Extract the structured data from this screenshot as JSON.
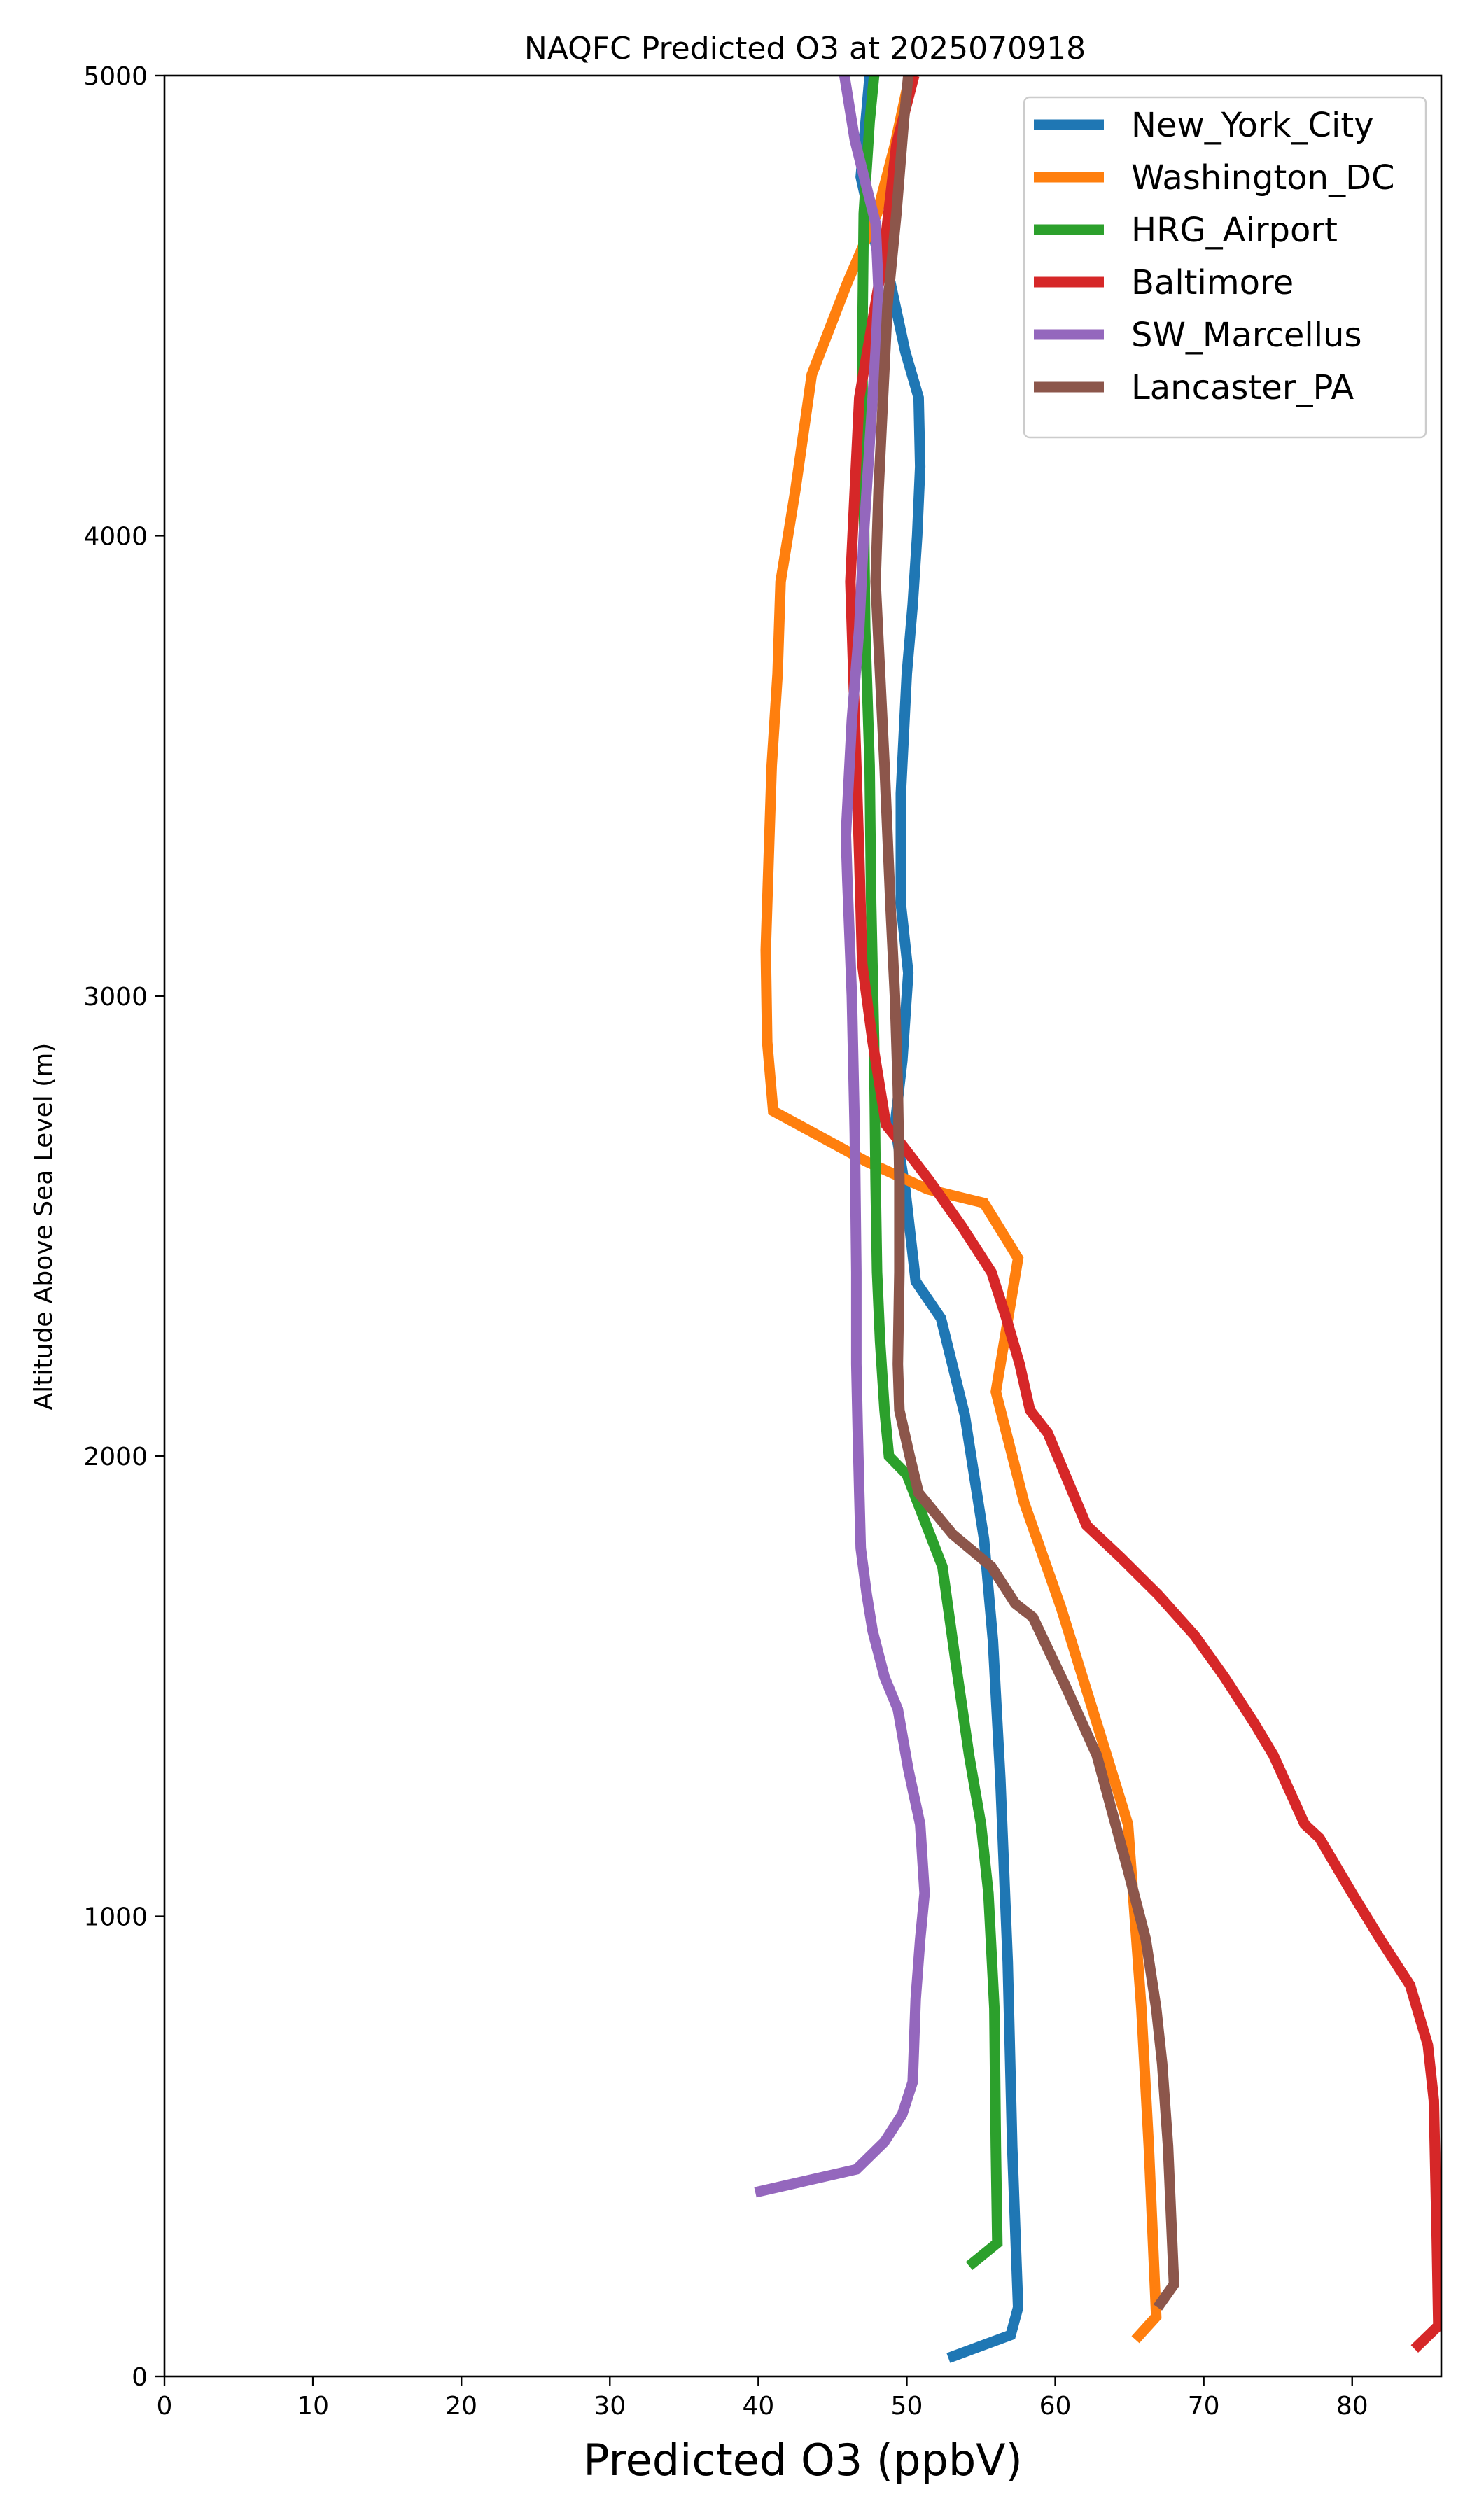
{
  "chart_data": {
    "type": "line",
    "title": "NAQFC Predicted O3 at 2025070918",
    "xlabel": "Predicted O3 (ppbV)",
    "ylabel": "Altitude Above Sea Level (m)",
    "xlim": [
      0,
      86
    ],
    "ylim": [
      0,
      5000
    ],
    "xticks": [
      0,
      10,
      20,
      30,
      40,
      50,
      60,
      70,
      80
    ],
    "yticks": [
      0,
      1000,
      2000,
      3000,
      4000,
      5000
    ],
    "grid": false,
    "legend_position": "top-right",
    "series": [
      {
        "name": "New_York_City",
        "color": "#1f77b4",
        "points": [
          [
            52.8,
            40
          ],
          [
            57.0,
            90
          ],
          [
            57.5,
            150
          ],
          [
            57.1,
            500
          ],
          [
            56.8,
            900
          ],
          [
            56.3,
            1300
          ],
          [
            55.8,
            1600
          ],
          [
            55.2,
            1820
          ],
          [
            53.9,
            2090
          ],
          [
            52.3,
            2300
          ],
          [
            50.6,
            2380
          ],
          [
            49.9,
            2580
          ],
          [
            49.2,
            2720
          ],
          [
            49.7,
            2860
          ],
          [
            50.1,
            3050
          ],
          [
            49.6,
            3200
          ],
          [
            49.6,
            3440
          ],
          [
            50.0,
            3700
          ],
          [
            50.4,
            3850
          ],
          [
            50.7,
            4000
          ],
          [
            50.9,
            4150
          ],
          [
            50.8,
            4300
          ],
          [
            49.9,
            4400
          ],
          [
            48.9,
            4550
          ],
          [
            48.0,
            4620
          ],
          [
            46.9,
            4780
          ],
          [
            47.5,
            5000
          ]
        ]
      },
      {
        "name": "Washington_DC",
        "color": "#ff7f0e",
        "points": [
          [
            65.4,
            80
          ],
          [
            66.8,
            130
          ],
          [
            66.3,
            500
          ],
          [
            65.8,
            800
          ],
          [
            64.9,
            1200
          ],
          [
            62.8,
            1420
          ],
          [
            60.4,
            1670
          ],
          [
            57.9,
            1900
          ],
          [
            56.0,
            2140
          ],
          [
            57.5,
            2430
          ],
          [
            55.2,
            2550
          ],
          [
            51.4,
            2580
          ],
          [
            47.3,
            2640
          ],
          [
            41.0,
            2750
          ],
          [
            40.6,
            2900
          ],
          [
            40.5,
            3100
          ],
          [
            40.7,
            3300
          ],
          [
            40.9,
            3500
          ],
          [
            41.3,
            3700
          ],
          [
            41.5,
            3900
          ],
          [
            42.5,
            4100
          ],
          [
            43.6,
            4350
          ],
          [
            46.0,
            4550
          ],
          [
            48.0,
            4700
          ],
          [
            49.2,
            4850
          ],
          [
            50.2,
            5000
          ]
        ]
      },
      {
        "name": "HRG_Airport",
        "color": "#2ca02c",
        "points": [
          [
            54.2,
            240
          ],
          [
            56.1,
            290
          ],
          [
            56.0,
            500
          ],
          [
            55.9,
            800
          ],
          [
            55.5,
            1050
          ],
          [
            55.0,
            1200
          ],
          [
            54.2,
            1350
          ],
          [
            53.3,
            1550
          ],
          [
            52.4,
            1760
          ],
          [
            50.0,
            1960
          ],
          [
            48.8,
            2000
          ],
          [
            48.5,
            2100
          ],
          [
            48.2,
            2250
          ],
          [
            48.0,
            2400
          ],
          [
            47.9,
            2600
          ],
          [
            47.8,
            2900
          ],
          [
            47.6,
            3200
          ],
          [
            47.5,
            3500
          ],
          [
            47.2,
            3800
          ],
          [
            47.1,
            4100
          ],
          [
            47.0,
            4400
          ],
          [
            47.1,
            4700
          ],
          [
            47.5,
            4900
          ],
          [
            47.8,
            5000
          ]
        ]
      },
      {
        "name": "Baltimore",
        "color": "#d62728",
        "points": [
          [
            84.2,
            60
          ],
          [
            85.8,
            110
          ],
          [
            85.7,
            300
          ],
          [
            85.5,
            600
          ],
          [
            85.1,
            720
          ],
          [
            83.9,
            850
          ],
          [
            81.9,
            950
          ],
          [
            80.0,
            1050
          ],
          [
            77.8,
            1170
          ],
          [
            76.8,
            1200
          ],
          [
            74.7,
            1350
          ],
          [
            73.4,
            1420
          ],
          [
            71.4,
            1520
          ],
          [
            69.4,
            1610
          ],
          [
            66.9,
            1700
          ],
          [
            64.4,
            1780
          ],
          [
            62.1,
            1850
          ],
          [
            60.8,
            1950
          ],
          [
            59.5,
            2050
          ],
          [
            58.3,
            2100
          ],
          [
            57.6,
            2200
          ],
          [
            56.7,
            2300
          ],
          [
            55.7,
            2400
          ],
          [
            53.7,
            2500
          ],
          [
            51.5,
            2600
          ],
          [
            49.6,
            2680
          ],
          [
            48.6,
            2720
          ],
          [
            47.7,
            2900
          ],
          [
            47.0,
            3070
          ],
          [
            46.8,
            3300
          ],
          [
            46.6,
            3500
          ],
          [
            46.4,
            3700
          ],
          [
            46.2,
            3900
          ],
          [
            46.5,
            4100
          ],
          [
            46.8,
            4300
          ],
          [
            47.6,
            4450
          ],
          [
            48.4,
            4600
          ],
          [
            49.3,
            4850
          ],
          [
            50.5,
            5000
          ]
        ]
      },
      {
        "name": "SW_Marcellus",
        "color": "#9467bd",
        "points": [
          [
            39.8,
            400
          ],
          [
            46.6,
            450
          ],
          [
            48.5,
            510
          ],
          [
            49.7,
            570
          ],
          [
            50.4,
            640
          ],
          [
            50.6,
            820
          ],
          [
            50.9,
            950
          ],
          [
            51.2,
            1050
          ],
          [
            50.9,
            1200
          ],
          [
            50.1,
            1320
          ],
          [
            49.4,
            1450
          ],
          [
            48.5,
            1520
          ],
          [
            47.7,
            1620
          ],
          [
            47.3,
            1700
          ],
          [
            46.9,
            1800
          ],
          [
            46.8,
            1920
          ],
          [
            46.7,
            2050
          ],
          [
            46.6,
            2200
          ],
          [
            46.6,
            2400
          ],
          [
            46.5,
            2700
          ],
          [
            46.3,
            3000
          ],
          [
            46.0,
            3250
          ],
          [
            45.9,
            3350
          ],
          [
            46.3,
            3600
          ],
          [
            46.8,
            3800
          ],
          [
            47.1,
            4000
          ],
          [
            47.5,
            4200
          ],
          [
            47.9,
            4400
          ],
          [
            48.1,
            4530
          ],
          [
            47.9,
            4680
          ],
          [
            46.5,
            4860
          ],
          [
            45.8,
            5000
          ]
        ]
      },
      {
        "name": "Lancaster_PA",
        "color": "#8c564b",
        "points": [
          [
            66.9,
            150
          ],
          [
            68.0,
            200
          ],
          [
            67.6,
            500
          ],
          [
            67.2,
            680
          ],
          [
            66.8,
            800
          ],
          [
            66.1,
            950
          ],
          [
            64.9,
            1100
          ],
          [
            62.8,
            1350
          ],
          [
            60.7,
            1500
          ],
          [
            58.5,
            1650
          ],
          [
            57.3,
            1680
          ],
          [
            55.7,
            1760
          ],
          [
            53.1,
            1830
          ],
          [
            50.8,
            1920
          ],
          [
            50.2,
            2000
          ],
          [
            49.5,
            2100
          ],
          [
            49.4,
            2200
          ],
          [
            49.5,
            2400
          ],
          [
            49.5,
            2600
          ],
          [
            49.4,
            2800
          ],
          [
            49.2,
            3000
          ],
          [
            48.9,
            3200
          ],
          [
            48.5,
            3500
          ],
          [
            48.2,
            3700
          ],
          [
            47.9,
            3900
          ],
          [
            48.1,
            4100
          ],
          [
            48.4,
            4300
          ],
          [
            48.7,
            4500
          ],
          [
            49.3,
            4700
          ],
          [
            49.8,
            4900
          ],
          [
            50.1,
            5000
          ]
        ]
      }
    ]
  }
}
